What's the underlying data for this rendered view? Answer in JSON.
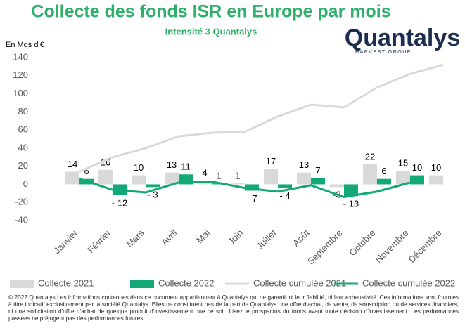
{
  "chart_data": {
    "type": "bar",
    "title": "Collecte des fonds ISR en Europe par mois",
    "subtitle": "Intensité 3 Quantalys",
    "y_label": "En Mds d'€",
    "logo": "Quantalys",
    "logo_sub": "HARVEST GROUP",
    "categories": [
      "Janvier",
      "Février",
      "Mars",
      "Avril",
      "Mai",
      "Juin",
      "Juillet",
      "Août",
      "Septembre",
      "Octobre",
      "Novembre",
      "Décembre"
    ],
    "series": [
      {
        "name": "Collecte 2021",
        "type": "bar",
        "color": "#d9d9d9",
        "values": [
          14,
          16,
          10,
          13,
          4,
          1,
          17,
          13,
          -3,
          22,
          15,
          10
        ]
      },
      {
        "name": "Collecte 2022",
        "type": "bar",
        "color": "#12a877",
        "values": [
          6,
          -12,
          -3,
          11,
          1,
          -7,
          -4,
          7,
          -13,
          6,
          10,
          null
        ],
        "value_labels": [
          "6",
          "- 12",
          "- 3",
          "11",
          "1",
          "- 7",
          "- 4",
          "7",
          "- 13",
          "6",
          "10",
          null
        ]
      },
      {
        "name": "Collecte cumulée 2021",
        "type": "line",
        "color": "#d9d9d9",
        "values": [
          14,
          30,
          40,
          53,
          57,
          58,
          75,
          88,
          85,
          107,
          122,
          132
        ]
      },
      {
        "name": "Collecte cumulée 2022",
        "type": "line",
        "color": "#12a877",
        "values": [
          6,
          -6,
          -9,
          2,
          3,
          -4,
          -8,
          -1,
          -14,
          -8,
          2,
          null
        ]
      }
    ],
    "ylim": [
      -40,
      140
    ],
    "yticks": [
      -40,
      -20,
      0,
      20,
      40,
      60,
      80,
      100,
      120,
      140
    ],
    "grid": false,
    "legend": "bottom",
    "footnote": "© 2022 Quantalys Les informations contenues dans ce document appartiennent à Quantalys qui ne garantit ni leur fiabilité, ni leur exhaustivité. Ces informations sont fournies à titre indicatif exclusivement par la société Quantalys. Elles ne constituent pas de la part de Quantalys une offre d'achat, de vente, de souscription ou de services financiers, ni une sollicitation d'offre d'achat de quelque produit d'investissement que ce soit. Lisez le prospectus du fonds avant toute décision d'investissement. Les performances passées ne préjugent pas des performances futures."
  }
}
